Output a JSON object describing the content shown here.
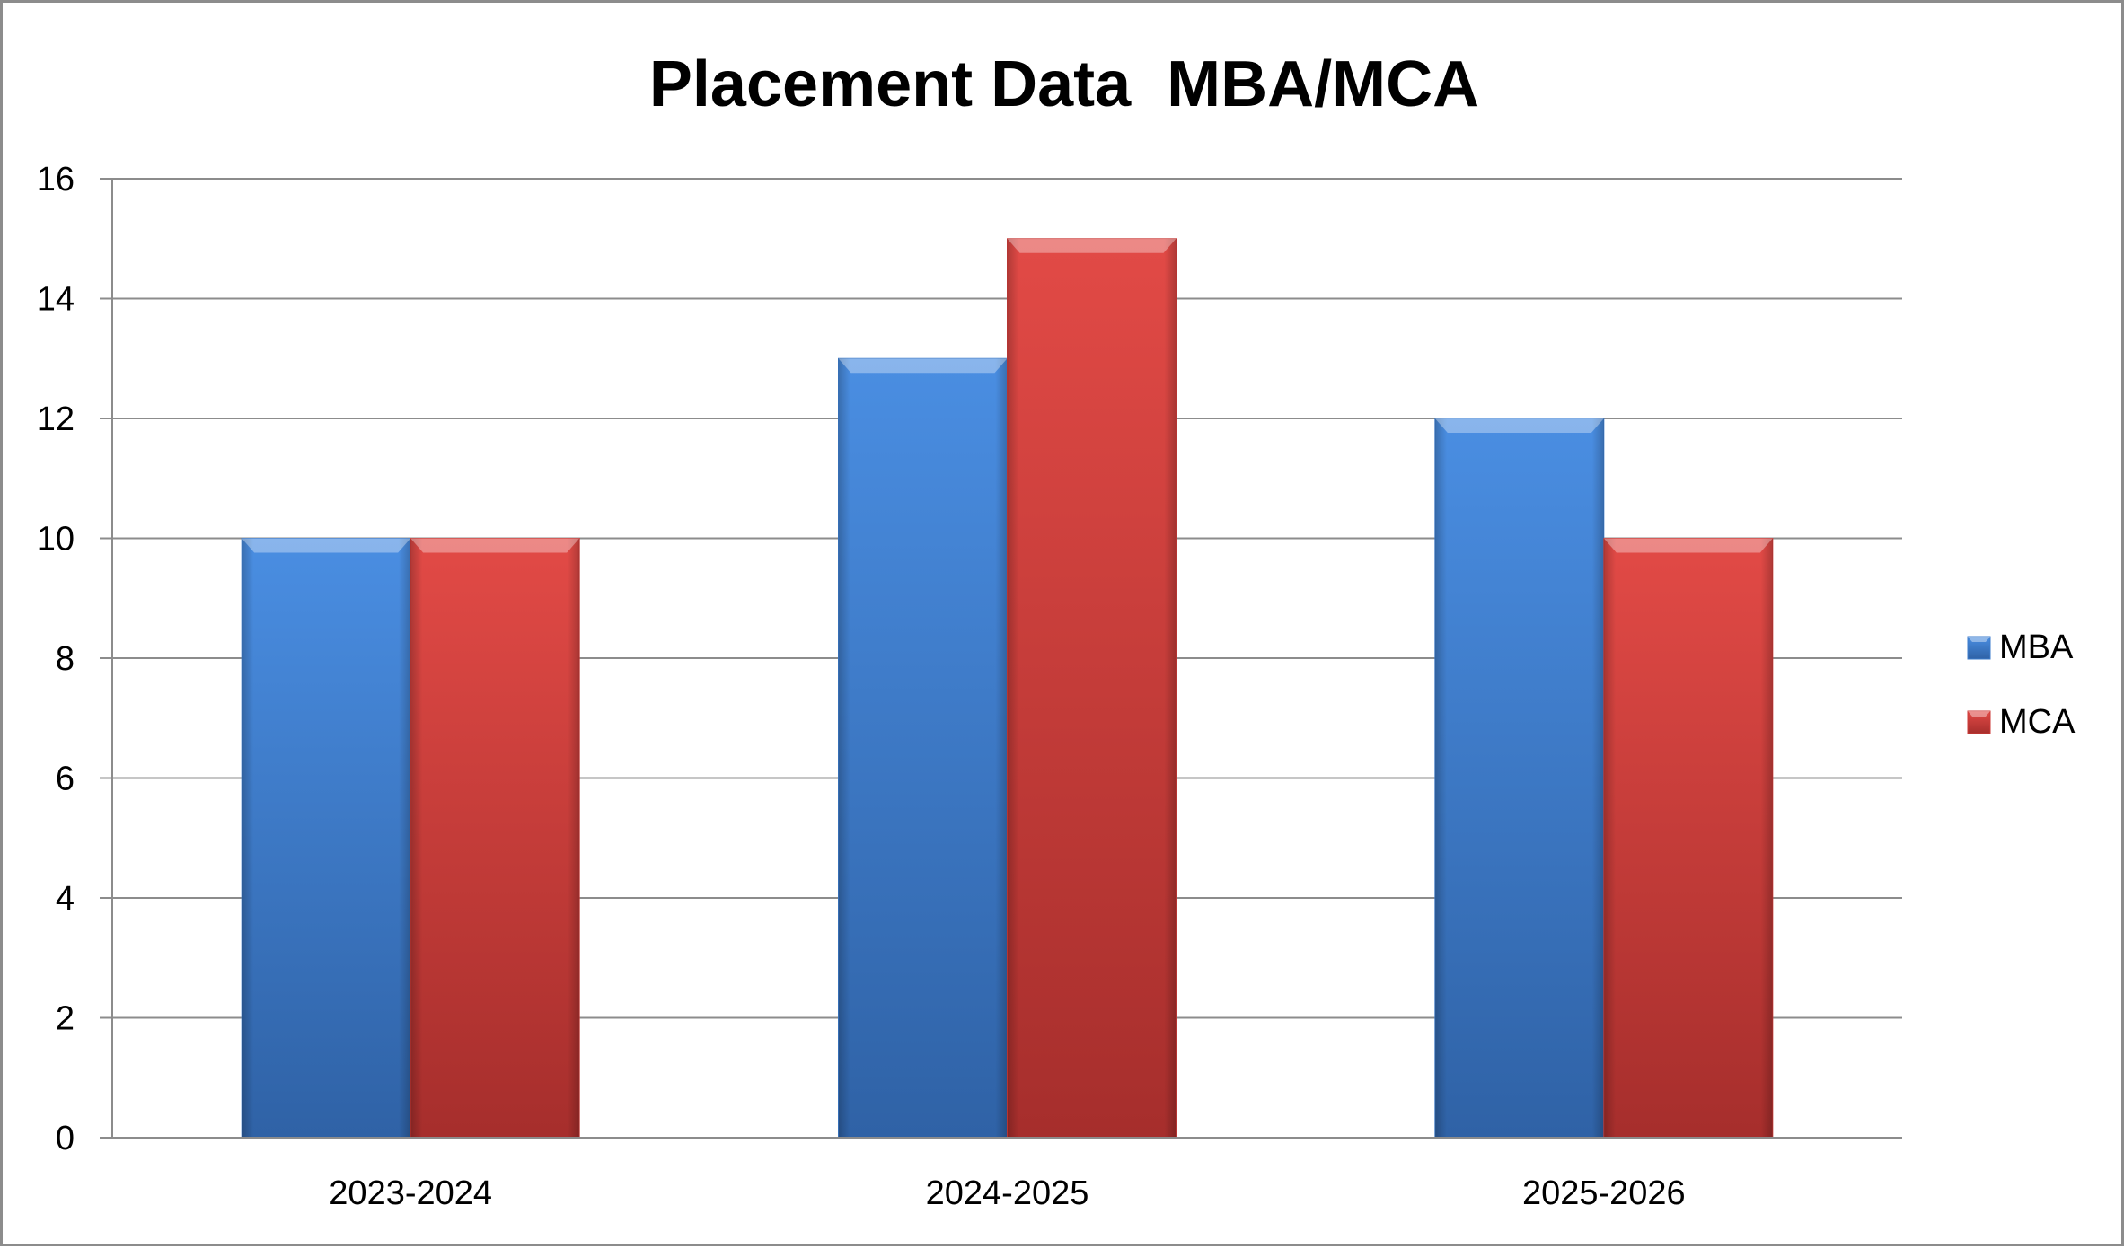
{
  "chart_data": {
    "type": "bar",
    "title": "Placement Data  MBA/MCA",
    "xlabel": "",
    "ylabel": "",
    "categories": [
      "2023-2024",
      "2024-2025",
      "2025-2026"
    ],
    "series": [
      {
        "name": "MBA",
        "values": [
          10,
          13,
          12
        ],
        "color": "#3d7ccc"
      },
      {
        "name": "MCA",
        "values": [
          10,
          15,
          10
        ],
        "color": "#cc3b38"
      }
    ],
    "ylim": [
      0,
      16
    ],
    "yticks": [
      "0",
      "2",
      "4",
      "6",
      "8",
      "10",
      "12",
      "14",
      "16"
    ],
    "grid": true,
    "legend_position": "right"
  }
}
